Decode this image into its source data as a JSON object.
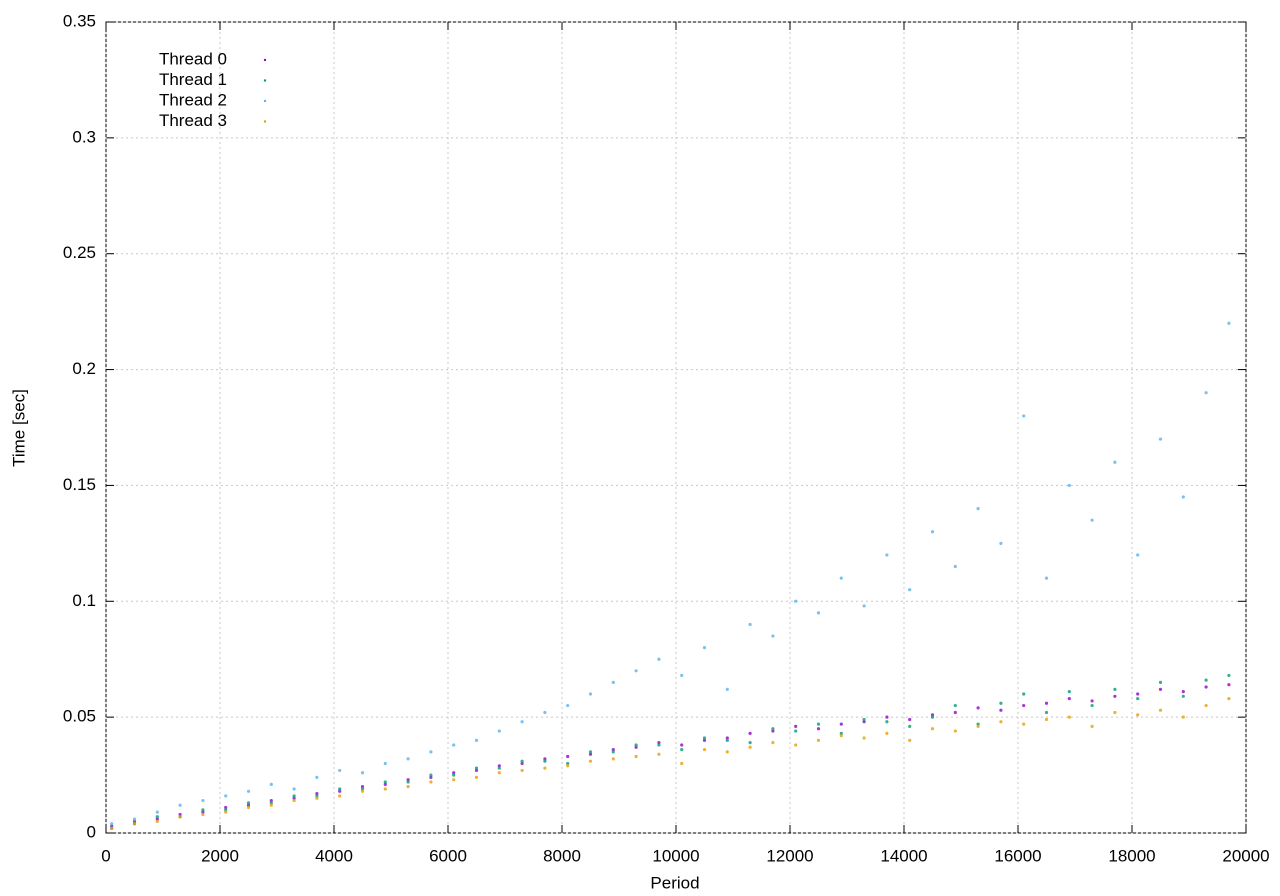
{
  "chart_data": {
    "type": "scatter",
    "xlabel": "Period",
    "ylabel": "Time [sec]",
    "x": [
      100,
      500,
      900,
      1300,
      1700,
      2100,
      2500,
      2900,
      3300,
      3700,
      4100,
      4500,
      4900,
      5300,
      5700,
      6100,
      6500,
      6900,
      7300,
      7700,
      8100,
      8500,
      8900,
      9300,
      9700,
      10100,
      10500,
      10900,
      11300,
      11700,
      12100,
      12500,
      12900,
      13300,
      13700,
      14100,
      14500,
      14900,
      15300,
      15700,
      16100,
      16500,
      16900,
      17300,
      17700,
      18100,
      18500,
      18900,
      19300,
      19700
    ],
    "series": [
      {
        "name": "Thread 0",
        "color": "#9400d3",
        "values": [
          0.003,
          0.005,
          0.006,
          0.008,
          0.009,
          0.011,
          0.012,
          0.014,
          0.015,
          0.017,
          0.018,
          0.02,
          0.021,
          0.023,
          0.024,
          0.026,
          0.027,
          0.029,
          0.03,
          0.032,
          0.033,
          0.034,
          0.036,
          0.037,
          0.039,
          0.038,
          0.04,
          0.041,
          0.043,
          0.044,
          0.046,
          0.045,
          0.047,
          0.048,
          0.05,
          0.049,
          0.051,
          0.052,
          0.054,
          0.053,
          0.055,
          0.056,
          0.058,
          0.057,
          0.059,
          0.06,
          0.062,
          0.061,
          0.063,
          0.064
        ]
      },
      {
        "name": "Thread 1",
        "color": "#009e73",
        "values": [
          0.002,
          0.004,
          0.007,
          0.007,
          0.01,
          0.01,
          0.013,
          0.013,
          0.016,
          0.016,
          0.019,
          0.019,
          0.022,
          0.022,
          0.025,
          0.025,
          0.028,
          0.028,
          0.031,
          0.031,
          0.03,
          0.035,
          0.035,
          0.038,
          0.038,
          0.036,
          0.041,
          0.04,
          0.039,
          0.045,
          0.044,
          0.047,
          0.043,
          0.049,
          0.048,
          0.046,
          0.05,
          0.055,
          0.047,
          0.056,
          0.06,
          0.052,
          0.061,
          0.055,
          0.062,
          0.058,
          0.065,
          0.059,
          0.066,
          0.068
        ]
      },
      {
        "name": "Thread 2",
        "color": "#56b4e9",
        "values": [
          0.004,
          0.006,
          0.009,
          0.012,
          0.014,
          0.016,
          0.018,
          0.021,
          0.019,
          0.024,
          0.027,
          0.026,
          0.03,
          0.032,
          0.035,
          0.038,
          0.04,
          0.044,
          0.048,
          0.052,
          0.055,
          0.06,
          0.065,
          0.07,
          0.075,
          0.068,
          0.08,
          0.062,
          0.09,
          0.085,
          0.1,
          0.095,
          0.11,
          0.098,
          0.12,
          0.105,
          0.13,
          0.115,
          0.14,
          0.125,
          0.18,
          0.11,
          0.15,
          0.135,
          0.16,
          0.12,
          0.17,
          0.145,
          0.19,
          0.22
        ]
      },
      {
        "name": "Thread 3",
        "color": "#e69f00",
        "values": [
          0.002,
          0.004,
          0.005,
          0.007,
          0.008,
          0.009,
          0.011,
          0.012,
          0.014,
          0.015,
          0.016,
          0.018,
          0.019,
          0.02,
          0.022,
          0.023,
          0.024,
          0.026,
          0.027,
          0.028,
          0.029,
          0.031,
          0.032,
          0.033,
          0.034,
          0.03,
          0.036,
          0.035,
          0.037,
          0.039,
          0.038,
          0.04,
          0.042,
          0.041,
          0.043,
          0.04,
          0.045,
          0.044,
          0.046,
          0.048,
          0.047,
          0.049,
          0.05,
          0.046,
          0.052,
          0.051,
          0.053,
          0.05,
          0.055,
          0.058
        ]
      }
    ],
    "xlim": [
      0,
      20000
    ],
    "xticks": [
      0,
      2000,
      4000,
      6000,
      8000,
      10000,
      12000,
      14000,
      16000,
      18000,
      20000
    ],
    "ylim": [
      0,
      0.35
    ],
    "yticks": [
      0,
      0.05,
      0.1,
      0.15,
      0.2,
      0.25,
      0.3,
      0.35
    ],
    "grid": true,
    "legend": "upper-left"
  }
}
